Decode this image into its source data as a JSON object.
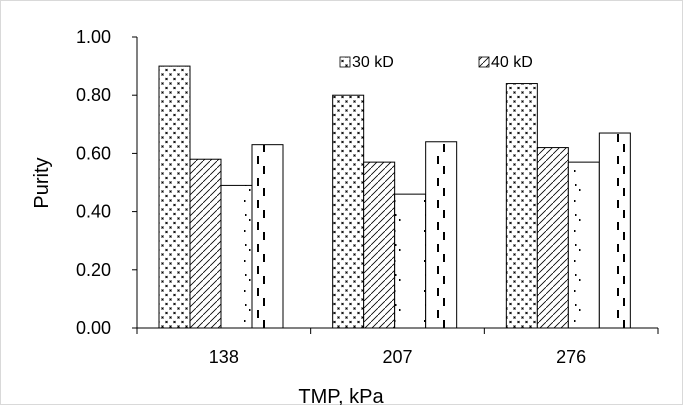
{
  "chart_data": {
    "type": "bar",
    "title": "",
    "xlabel": "TMP, kPa",
    "ylabel": "Purity",
    "categories": [
      "138",
      "207",
      "276"
    ],
    "ylim": [
      0,
      1.0
    ],
    "yticks": [
      "0.00",
      "0.20",
      "0.40",
      "0.60",
      "0.80",
      "1.00"
    ],
    "grid": false,
    "legend_position": "top-right",
    "series": [
      {
        "name": "30 kD",
        "values": [
          0.9,
          0.8,
          0.84
        ],
        "pattern": "cross-dots"
      },
      {
        "name": "40 kD",
        "values": [
          0.58,
          0.57,
          0.62
        ],
        "pattern": "diagonal-hatch"
      },
      {
        "name": "",
        "values": [
          0.49,
          0.46,
          0.57
        ],
        "pattern": "sparse-dots"
      },
      {
        "name": "",
        "values": [
          0.63,
          0.64,
          0.67
        ],
        "pattern": "dashes"
      }
    ],
    "colors": {
      "bar_stroke": "#000000",
      "fill": "#ffffff",
      "frame": "#d9d9d9"
    }
  }
}
